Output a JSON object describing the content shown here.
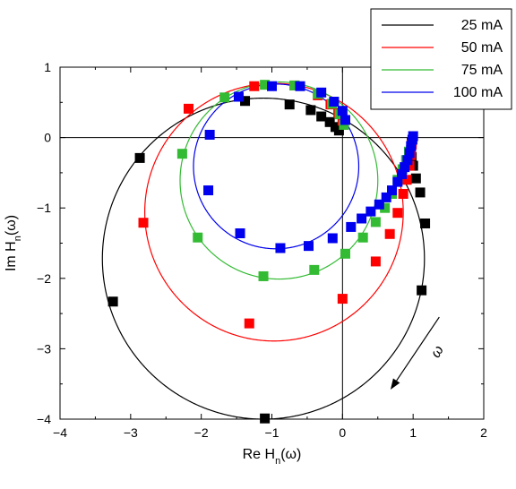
{
  "chart_data": {
    "type": "scatter",
    "title": "",
    "xlabel": {
      "main": "Re  H",
      "sub": "n",
      "tail": "(ω)"
    },
    "ylabel": {
      "main": "Im  H",
      "sub": "n",
      "tail": "(ω)"
    },
    "xlim": [
      -4,
      2
    ],
    "ylim": [
      -4,
      1
    ],
    "xticks": [
      -4,
      -3,
      -2,
      -1,
      0,
      1,
      2
    ],
    "yticks": [
      -4,
      -3,
      -2,
      -1,
      0,
      1
    ],
    "xtick_labels": [
      "−4",
      "−3",
      "−2",
      "−1",
      "0",
      "1",
      "2"
    ],
    "ytick_labels": [
      "−4",
      "−3",
      "−2",
      "−1",
      "0",
      "1"
    ],
    "zero_lines": true,
    "legend_position": "top-right",
    "annotation": {
      "text": "ω",
      "arrow_from": [
        1.37,
        -2.55
      ],
      "arrow_to": [
        0.68,
        -3.58
      ]
    },
    "series": [
      {
        "name": "25 mA",
        "color": "#000000",
        "fit_circle": {
          "cx": -1.12,
          "cy": -1.72,
          "r": 2.28
        },
        "points": [
          [
            -1.1,
            -3.99
          ],
          [
            -3.25,
            -2.33
          ],
          [
            -2.87,
            -0.29
          ],
          [
            -1.38,
            0.52
          ],
          [
            -0.75,
            0.47
          ],
          [
            -0.45,
            0.39
          ],
          [
            -0.3,
            0.3
          ],
          [
            -0.18,
            0.22
          ],
          [
            -0.1,
            0.15
          ],
          [
            -0.05,
            0.1
          ],
          [
            1.12,
            -2.17
          ],
          [
            1.17,
            -1.22
          ],
          [
            1.1,
            -0.78
          ],
          [
            1.04,
            -0.58
          ],
          [
            1.0,
            -0.4
          ],
          [
            0.98,
            -0.28
          ],
          [
            0.97,
            -0.18
          ],
          [
            0.98,
            -0.07
          ]
        ]
      },
      {
        "name": "50 mA",
        "color": "#ff0000",
        "fit_circle": {
          "cx": -0.97,
          "cy": -1.06,
          "r": 1.83
        },
        "points": [
          [
            -1.32,
            -2.64
          ],
          [
            -2.82,
            -1.21
          ],
          [
            -2.18,
            0.41
          ],
          [
            -1.25,
            0.73
          ],
          [
            -0.68,
            0.74
          ],
          [
            -0.35,
            0.6
          ],
          [
            -0.17,
            0.47
          ],
          [
            -0.06,
            0.35
          ],
          [
            0.0,
            0.24
          ],
          [
            0.0,
            -2.29
          ],
          [
            0.47,
            -1.76
          ],
          [
            0.67,
            -1.37
          ],
          [
            0.78,
            -1.07
          ],
          [
            0.86,
            -0.8
          ],
          [
            0.91,
            -0.6
          ],
          [
            0.95,
            -0.4
          ],
          [
            0.97,
            -0.25
          ],
          [
            0.98,
            -0.1
          ]
        ]
      },
      {
        "name": "75 mA",
        "color": "#33bb33",
        "fit_circle": {
          "cx": -0.9,
          "cy": -0.61,
          "r": 1.4
        },
        "points": [
          [
            -1.12,
            -1.97
          ],
          [
            -2.05,
            -1.42
          ],
          [
            -2.27,
            -0.23
          ],
          [
            -1.67,
            0.57
          ],
          [
            -1.1,
            0.75
          ],
          [
            -0.68,
            0.74
          ],
          [
            -0.35,
            0.62
          ],
          [
            -0.15,
            0.48
          ],
          [
            -0.04,
            0.33
          ],
          [
            0.02,
            0.18
          ],
          [
            -0.4,
            -1.88
          ],
          [
            0.04,
            -1.65
          ],
          [
            0.29,
            -1.42
          ],
          [
            0.47,
            -1.2
          ],
          [
            0.6,
            -1.0
          ],
          [
            0.7,
            -0.8
          ],
          [
            0.78,
            -0.6
          ],
          [
            0.85,
            -0.45
          ],
          [
            0.9,
            -0.32
          ],
          [
            0.94,
            -0.2
          ]
        ]
      },
      {
        "name": "100 mA",
        "color": "#0000ee",
        "fit_circle": {
          "cx": -0.94,
          "cy": -0.41,
          "r": 1.17
        },
        "points": [
          [
            -0.88,
            -1.57
          ],
          [
            -1.45,
            -1.36
          ],
          [
            -1.9,
            -0.75
          ],
          [
            -1.88,
            0.04
          ],
          [
            -1.47,
            0.58
          ],
          [
            -1.0,
            0.73
          ],
          [
            -0.6,
            0.73
          ],
          [
            -0.3,
            0.64
          ],
          [
            -0.12,
            0.51
          ],
          [
            0.0,
            0.38
          ],
          [
            0.04,
            0.25
          ],
          [
            -0.48,
            -1.54
          ],
          [
            -0.14,
            -1.43
          ],
          [
            0.12,
            -1.27
          ],
          [
            0.27,
            -1.15
          ],
          [
            0.4,
            -1.05
          ],
          [
            0.52,
            -0.95
          ],
          [
            0.62,
            -0.85
          ],
          [
            0.7,
            -0.75
          ],
          [
            0.78,
            -0.63
          ],
          [
            0.84,
            -0.52
          ],
          [
            0.88,
            -0.42
          ],
          [
            0.92,
            -0.32
          ],
          [
            0.95,
            -0.22
          ],
          [
            0.97,
            -0.12
          ],
          [
            0.99,
            -0.03
          ],
          [
            1.0,
            0.02
          ]
        ]
      }
    ]
  }
}
